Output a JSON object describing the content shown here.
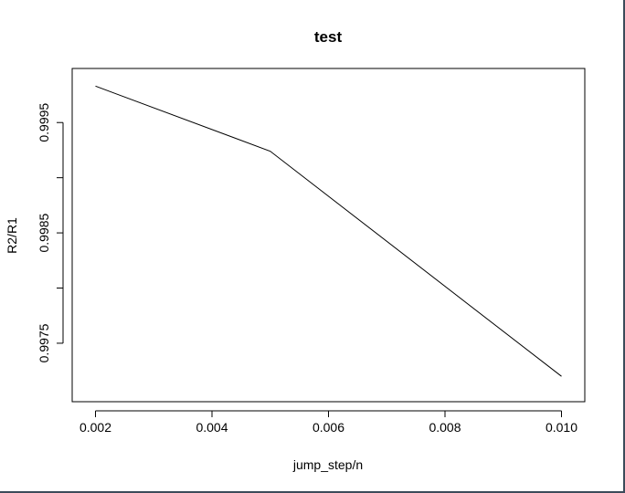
{
  "chart_data": {
    "type": "line",
    "title": "test",
    "xlabel": "jump_step/n",
    "ylabel": "R2/R1",
    "x": [
      0.002,
      0.005,
      0.01
    ],
    "series": [
      {
        "values": [
          0.99983,
          0.99924,
          0.9972
        ]
      }
    ],
    "xlim": [
      0.0016,
      0.0104
    ],
    "ylim": [
      0.99697,
      0.99999
    ],
    "x_ticks": [
      0.002,
      0.004,
      0.006,
      0.008,
      0.01
    ],
    "x_tick_labels": [
      "0.002",
      "0.004",
      "0.006",
      "0.008",
      "0.010"
    ],
    "y_ticks": [
      0.9975,
      0.998,
      0.9985,
      0.999,
      0.9995
    ],
    "y_tick_labels": [
      "0.9975",
      "",
      "0.9985",
      "",
      "0.9995"
    ],
    "grid": false,
    "line_color": "#000000"
  }
}
